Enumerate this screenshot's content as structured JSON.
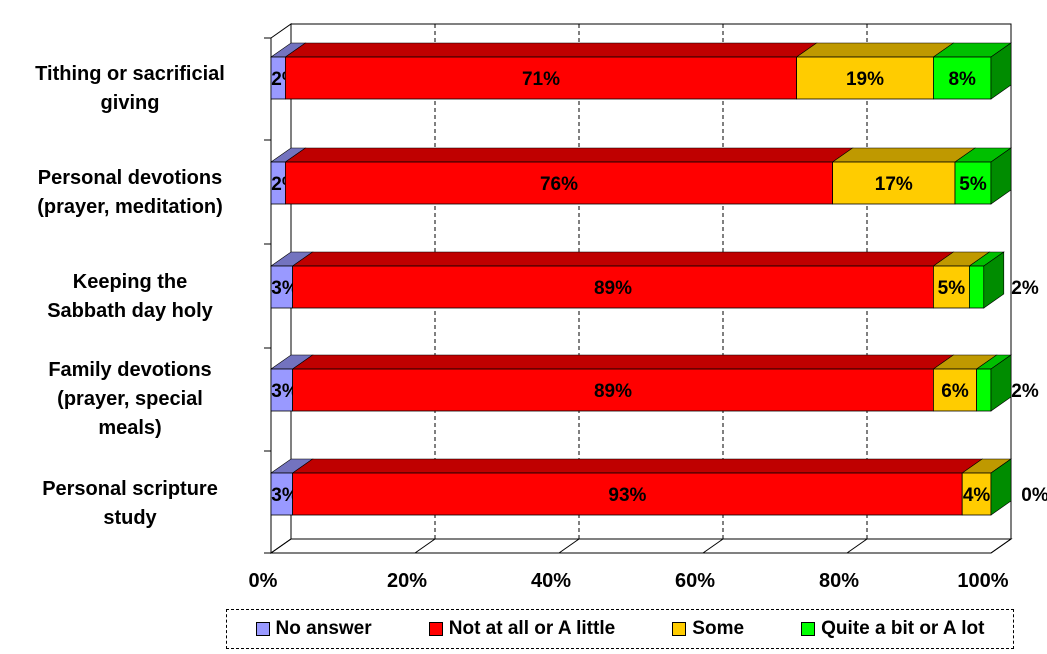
{
  "chart_data": {
    "type": "bar",
    "orientation": "horizontal-stacked-100",
    "categories": [
      "Tithing or sacrificial giving",
      "Personal devotions (prayer, meditation)",
      "Keeping the Sabbath day holy",
      "Family devotions (prayer, special meals)",
      "Personal scripture study"
    ],
    "category_lines": [
      [
        "Tithing or sacrificial",
        "giving"
      ],
      [
        "Personal devotions",
        "(prayer, meditation)"
      ],
      [
        "Keeping the",
        "Sabbath day holy"
      ],
      [
        "Family devotions",
        "(prayer, special",
        "meals)"
      ],
      [
        "Personal scripture",
        "study"
      ]
    ],
    "series": [
      {
        "name": "No answer",
        "values": [
          2,
          2,
          3,
          3,
          3
        ],
        "labels": [
          "2%",
          "2%",
          "3%",
          "3%",
          "3%"
        ],
        "color": "#9999FF"
      },
      {
        "name": "Not at all or A little",
        "values": [
          71,
          76,
          89,
          89,
          93
        ],
        "labels": [
          "71%",
          "76%",
          "89%",
          "89%",
          "93%"
        ],
        "color": "#FF0000"
      },
      {
        "name": "Some",
        "values": [
          19,
          17,
          5,
          6,
          4
        ],
        "labels": [
          "19%",
          "17%",
          "5%",
          "6%",
          "4%"
        ],
        "color": "#FFCC00"
      },
      {
        "name": "Quite a bit or A lot",
        "values": [
          8,
          5,
          2,
          2,
          0
        ],
        "labels": [
          "8%",
          "5%",
          "2%",
          "2%",
          "0%"
        ],
        "color": "#00FF00"
      }
    ],
    "x_ticks": [
      "0%",
      "20%",
      "40%",
      "60%",
      "80%",
      "100%"
    ],
    "xlim": [
      0,
      100
    ],
    "grid": true,
    "legend_position": "bottom",
    "title": "",
    "xlabel": "",
    "ylabel": ""
  }
}
